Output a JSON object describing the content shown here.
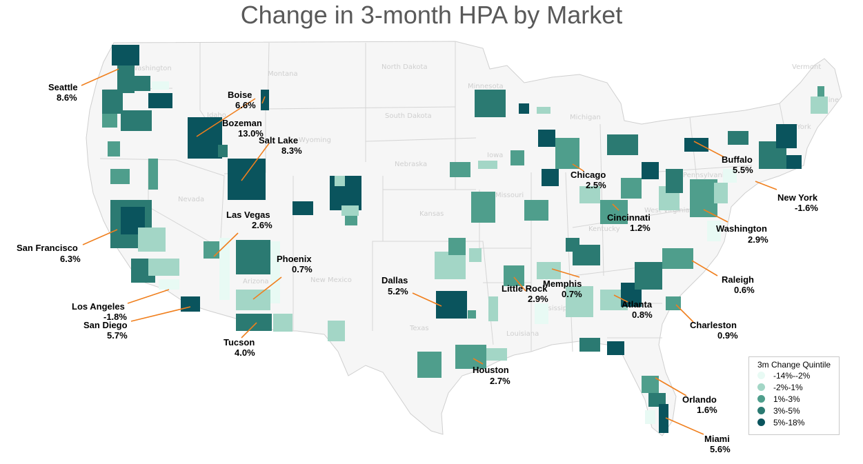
{
  "title": "Change in 3-month HPA by Market",
  "colors": {
    "q1": "#e8faf4",
    "q2": "#a3d6c6",
    "q3": "#4f9e8c",
    "q4": "#2b7a72",
    "q5": "#0a545d",
    "leader": "#f07f1d",
    "land": "#f6f6f6",
    "border": "#d5d5d5"
  },
  "legend": {
    "title": "3m Change Quintile",
    "items": [
      {
        "label": "-14%--2%",
        "color": "#e8faf4"
      },
      {
        "label": "-2%-1%",
        "color": "#a3d6c6"
      },
      {
        "label": "1%-3%",
        "color": "#4f9e8c"
      },
      {
        "label": "3%-5%",
        "color": "#2b7a72"
      },
      {
        "label": "5%-18%",
        "color": "#0a545d"
      }
    ]
  },
  "states": [
    "Washington",
    "Montana",
    "North Dakota",
    "Minnesota",
    "South Dakota",
    "Wyoming",
    "Idaho",
    "Nebraska",
    "Iowa",
    "Nevada",
    "Kansas",
    "Missouri",
    "Kentucky",
    "New Mexico",
    "Texas",
    "Louisiana",
    "Arizona",
    "Michigan",
    "Pennsylvania",
    "West Virginia",
    "Mississippi",
    "Vermont",
    "New York",
    "Maine"
  ],
  "markets": [
    {
      "name": "Seattle",
      "value": "8.6%",
      "quintile": "5%-18%"
    },
    {
      "name": "Boise",
      "value": "6.6%",
      "quintile": "5%-18%"
    },
    {
      "name": "Bozeman",
      "value": "13.0%",
      "quintile": "5%-18%"
    },
    {
      "name": "Salt Lake",
      "value": "8.3%",
      "quintile": "5%-18%"
    },
    {
      "name": "Las Vegas",
      "value": "2.6%",
      "quintile": "1%-3%"
    },
    {
      "name": "San Francisco",
      "value": "6.3%",
      "quintile": "5%-18%"
    },
    {
      "name": "Phoenix",
      "value": "0.7%",
      "quintile": "-2%-1%"
    },
    {
      "name": "Los Angeles",
      "value": "-1.8%",
      "quintile": "-2%-1%"
    },
    {
      "name": "San Diego",
      "value": "5.7%",
      "quintile": "5%-18%"
    },
    {
      "name": "Tucson",
      "value": "4.0%",
      "quintile": "3%-5%"
    },
    {
      "name": "Dallas",
      "value": "5.2%",
      "quintile": "5%-18%"
    },
    {
      "name": "Houston",
      "value": "2.7%",
      "quintile": "1%-3%"
    },
    {
      "name": "Little Rock",
      "value": "2.9%",
      "quintile": "1%-3%"
    },
    {
      "name": "Memphis",
      "value": "0.7%",
      "quintile": "-2%-1%"
    },
    {
      "name": "Atlanta",
      "value": "0.8%",
      "quintile": "-2%-1%"
    },
    {
      "name": "Chicago",
      "value": "2.5%",
      "quintile": "1%-3%"
    },
    {
      "name": "Cincinnati",
      "value": "1.2%",
      "quintile": "1%-3%"
    },
    {
      "name": "Washington",
      "value": "2.9%",
      "quintile": "1%-3%"
    },
    {
      "name": "Buffalo",
      "value": "5.5%",
      "quintile": "5%-18%"
    },
    {
      "name": "New York",
      "value": "-1.6%",
      "quintile": "-2%-1%"
    },
    {
      "name": "Raleigh",
      "value": "0.6%",
      "quintile": "-2%-1%"
    },
    {
      "name": "Charleston",
      "value": "0.9%",
      "quintile": "-2%-1%"
    },
    {
      "name": "Orlando",
      "value": "1.6%",
      "quintile": "1%-3%"
    },
    {
      "name": "Miami",
      "value": "5.6%",
      "quintile": "5%-18%"
    }
  ]
}
